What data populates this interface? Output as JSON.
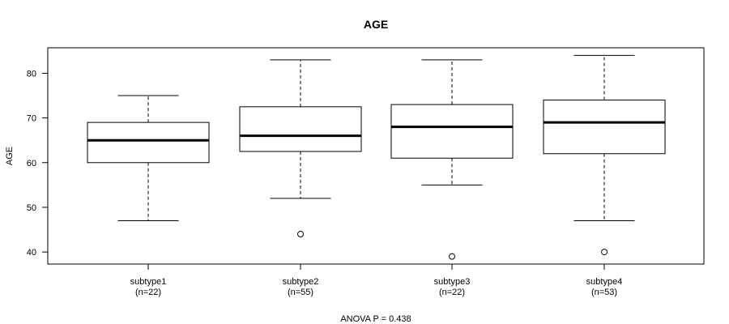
{
  "chart_data": {
    "type": "box",
    "title": "AGE",
    "ylabel": "AGE",
    "xlabel": "",
    "footnote": "ANOVA P = 0.438",
    "ylim": [
      37.3,
      85.7
    ],
    "yticks": [
      40,
      50,
      60,
      70,
      80
    ],
    "grid": false,
    "groups": [
      {
        "label": "subtype1",
        "n_label": "(n=22)",
        "min": 47,
        "q1": 60,
        "median": 65,
        "q3": 69,
        "max": 75,
        "outliers": []
      },
      {
        "label": "subtype2",
        "n_label": "(n=55)",
        "min": 52,
        "q1": 62.5,
        "median": 66,
        "q3": 72.5,
        "max": 83,
        "outliers": [
          44
        ]
      },
      {
        "label": "subtype3",
        "n_label": "(n=22)",
        "min": 55,
        "q1": 61,
        "median": 68,
        "q3": 73,
        "max": 83,
        "outliers": [
          39
        ]
      },
      {
        "label": "subtype4",
        "n_label": "(n=53)",
        "min": 47,
        "q1": 62,
        "median": 69,
        "q3": 74,
        "max": 84,
        "outliers": [
          40
        ]
      }
    ]
  }
}
